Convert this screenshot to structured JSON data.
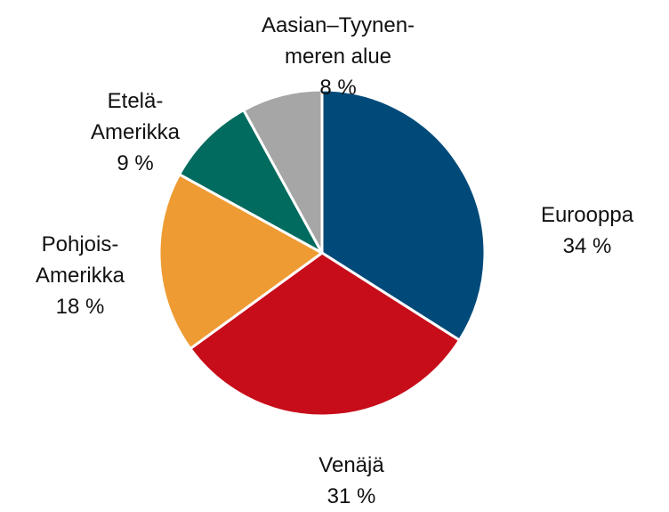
{
  "chart_data": {
    "type": "pie",
    "categories": [
      "Eurooppa",
      "Venäjä",
      "Pohjois-\nAmerikka",
      "Etelä-\nAmerikka",
      "Aasian–Tyynen-\nmeren alue"
    ],
    "values": [
      34,
      31,
      18,
      9,
      8
    ],
    "value_labels": [
      "34 %",
      "31 %",
      "18 %",
      "9 %",
      "8 %"
    ],
    "colors": [
      "#004a7a",
      "#c70c1a",
      "#ef9b33",
      "#006b5e",
      "#a6a6a6"
    ]
  }
}
